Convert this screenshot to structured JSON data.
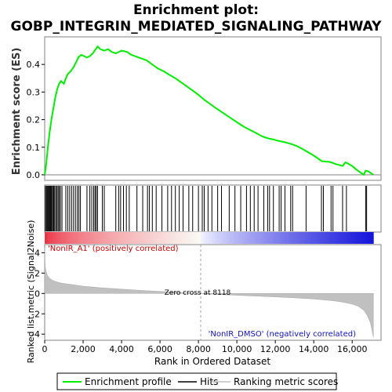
{
  "chart_data": {
    "type": "line",
    "title_line1": "Enrichment plot:",
    "title_line2": "GOBP_INTEGRIN_MEDIATED_SIGNALING_PATHWAY",
    "xlabel": "Rank in Ordered Dataset",
    "ylabel_top": "Enrichment score (ES)",
    "ylabel_bottom": "Ranked list metric (Signal2Noise)",
    "xlim": [
      0,
      17500
    ],
    "x_ticks": [
      0,
      2000,
      4000,
      6000,
      8000,
      10000,
      12000,
      14000,
      16000
    ],
    "x_tick_labels": [
      "0",
      "2,000",
      "4,000",
      "6,000",
      "8,000",
      "10,000",
      "12,000",
      "14,000",
      "16,000"
    ],
    "es_ylim": [
      -0.02,
      0.5
    ],
    "es_ticks": [
      0.0,
      0.1,
      0.2,
      0.3,
      0.4
    ],
    "es_tick_labels": [
      "0.0",
      "0.1",
      "0.2",
      "0.3",
      "0.4"
    ],
    "metric_ylim": [
      -4.6,
      4.8
    ],
    "metric_ticks": [
      4,
      2,
      0,
      -2,
      -4
    ],
    "metric_tick_labels": [
      "4",
      "2",
      "0",
      "-2",
      "-4"
    ],
    "enrichment_profile": {
      "name": "Enrichment profile",
      "color": "#00ee00",
      "x": [
        0,
        80,
        150,
        250,
        350,
        450,
        550,
        650,
        750,
        850,
        1000,
        1100,
        1200,
        1350,
        1500,
        1650,
        1750,
        1900,
        2050,
        2200,
        2350,
        2500,
        2650,
        2750,
        2900,
        3100,
        3300,
        3500,
        3700,
        3850,
        4000,
        4150,
        4300,
        4500,
        4700,
        4900,
        5100,
        5300,
        5500,
        5700,
        5900,
        6200,
        6500,
        6800,
        7100,
        7400,
        7700,
        8000,
        8300,
        8600,
        8900,
        9200,
        9500,
        9800,
        10100,
        10400,
        10700,
        11000,
        11300,
        11500,
        11700,
        11900,
        12100,
        12300,
        12500,
        12700,
        12900,
        13100,
        13300,
        13500,
        13700,
        13900,
        14100,
        14300,
        14400,
        14600,
        14800,
        14950,
        15100,
        15300,
        15500,
        15650,
        15800,
        16000,
        16200,
        16400,
        16600,
        16700,
        16850,
        17000,
        17100
      ],
      "y": [
        0.0,
        0.04,
        0.09,
        0.15,
        0.2,
        0.24,
        0.28,
        0.31,
        0.33,
        0.34,
        0.33,
        0.35,
        0.365,
        0.375,
        0.39,
        0.41,
        0.425,
        0.435,
        0.43,
        0.425,
        0.43,
        0.44,
        0.455,
        0.465,
        0.455,
        0.45,
        0.455,
        0.445,
        0.44,
        0.445,
        0.45,
        0.448,
        0.445,
        0.435,
        0.43,
        0.425,
        0.42,
        0.415,
        0.405,
        0.395,
        0.385,
        0.375,
        0.362,
        0.35,
        0.335,
        0.32,
        0.305,
        0.29,
        0.272,
        0.257,
        0.242,
        0.228,
        0.214,
        0.2,
        0.186,
        0.173,
        0.162,
        0.151,
        0.14,
        0.135,
        0.131,
        0.128,
        0.124,
        0.121,
        0.118,
        0.114,
        0.11,
        0.105,
        0.098,
        0.09,
        0.082,
        0.074,
        0.065,
        0.055,
        0.05,
        0.048,
        0.047,
        0.044,
        0.04,
        0.036,
        0.032,
        0.045,
        0.04,
        0.032,
        0.02,
        0.01,
        0.0,
        0.015,
        0.012,
        0.005,
        0.0
      ]
    },
    "hits": {
      "name": "Hits",
      "x": [
        40,
        90,
        130,
        170,
        210,
        250,
        290,
        330,
        370,
        420,
        470,
        520,
        580,
        640,
        700,
        760,
        820,
        900,
        1100,
        1200,
        1300,
        1400,
        1500,
        1600,
        1700,
        1780,
        1860,
        2200,
        2350,
        2450,
        2550,
        2620,
        2680,
        2750,
        3000,
        3100,
        3700,
        3850,
        3950,
        4100,
        4250,
        4400,
        4800,
        5100,
        5350,
        5450,
        5600,
        5800,
        6100,
        6400,
        6600,
        6800,
        7000,
        7200,
        7500,
        7700,
        8000,
        8200,
        8300,
        8500,
        8700,
        9000,
        9200,
        9600,
        9900,
        10200,
        10500,
        10700,
        10900,
        11100,
        11400,
        11600,
        11700,
        11900,
        12200,
        12300,
        12500,
        12800,
        12900,
        13600,
        14400,
        14500,
        14900,
        15000,
        15500,
        15700,
        16700,
        16750
      ]
    },
    "ranking_metric": {
      "name": "Ranking metric scores",
      "color": "#c0c0c0",
      "x": [
        0,
        30,
        80,
        150,
        250,
        400,
        600,
        900,
        1300,
        2000,
        3000,
        4000,
        5000,
        6000,
        7000,
        8118,
        9000,
        10000,
        11000,
        12000,
        13000,
        14000,
        15000,
        15500,
        16000,
        16300,
        16600,
        16800,
        16950,
        17050,
        17100
      ],
      "y": [
        4.5,
        2.6,
        2.1,
        1.75,
        1.5,
        1.3,
        1.15,
        1.0,
        0.9,
        0.72,
        0.55,
        0.42,
        0.3,
        0.2,
        0.1,
        0.0,
        -0.1,
        -0.18,
        -0.26,
        -0.34,
        -0.43,
        -0.55,
        -0.72,
        -0.85,
        -1.05,
        -1.25,
        -1.65,
        -2.2,
        -2.9,
        -3.8,
        -4.3
      ]
    },
    "zero_cross": 8118,
    "zero_cross_text": "Zero cross at 8118",
    "positive_label": "'NonIR_A1' (positively correlated)",
    "negative_label": "'NonIR_DMSO' (negatively correlated)",
    "legend": [
      {
        "label": "Enrichment profile",
        "color": "#00ee00"
      },
      {
        "label": "Hits",
        "color": "#000000"
      },
      {
        "label": "Ranking metric scores",
        "color": "#c0c0c0"
      }
    ],
    "grid": false,
    "legend_placement": "bottom"
  }
}
